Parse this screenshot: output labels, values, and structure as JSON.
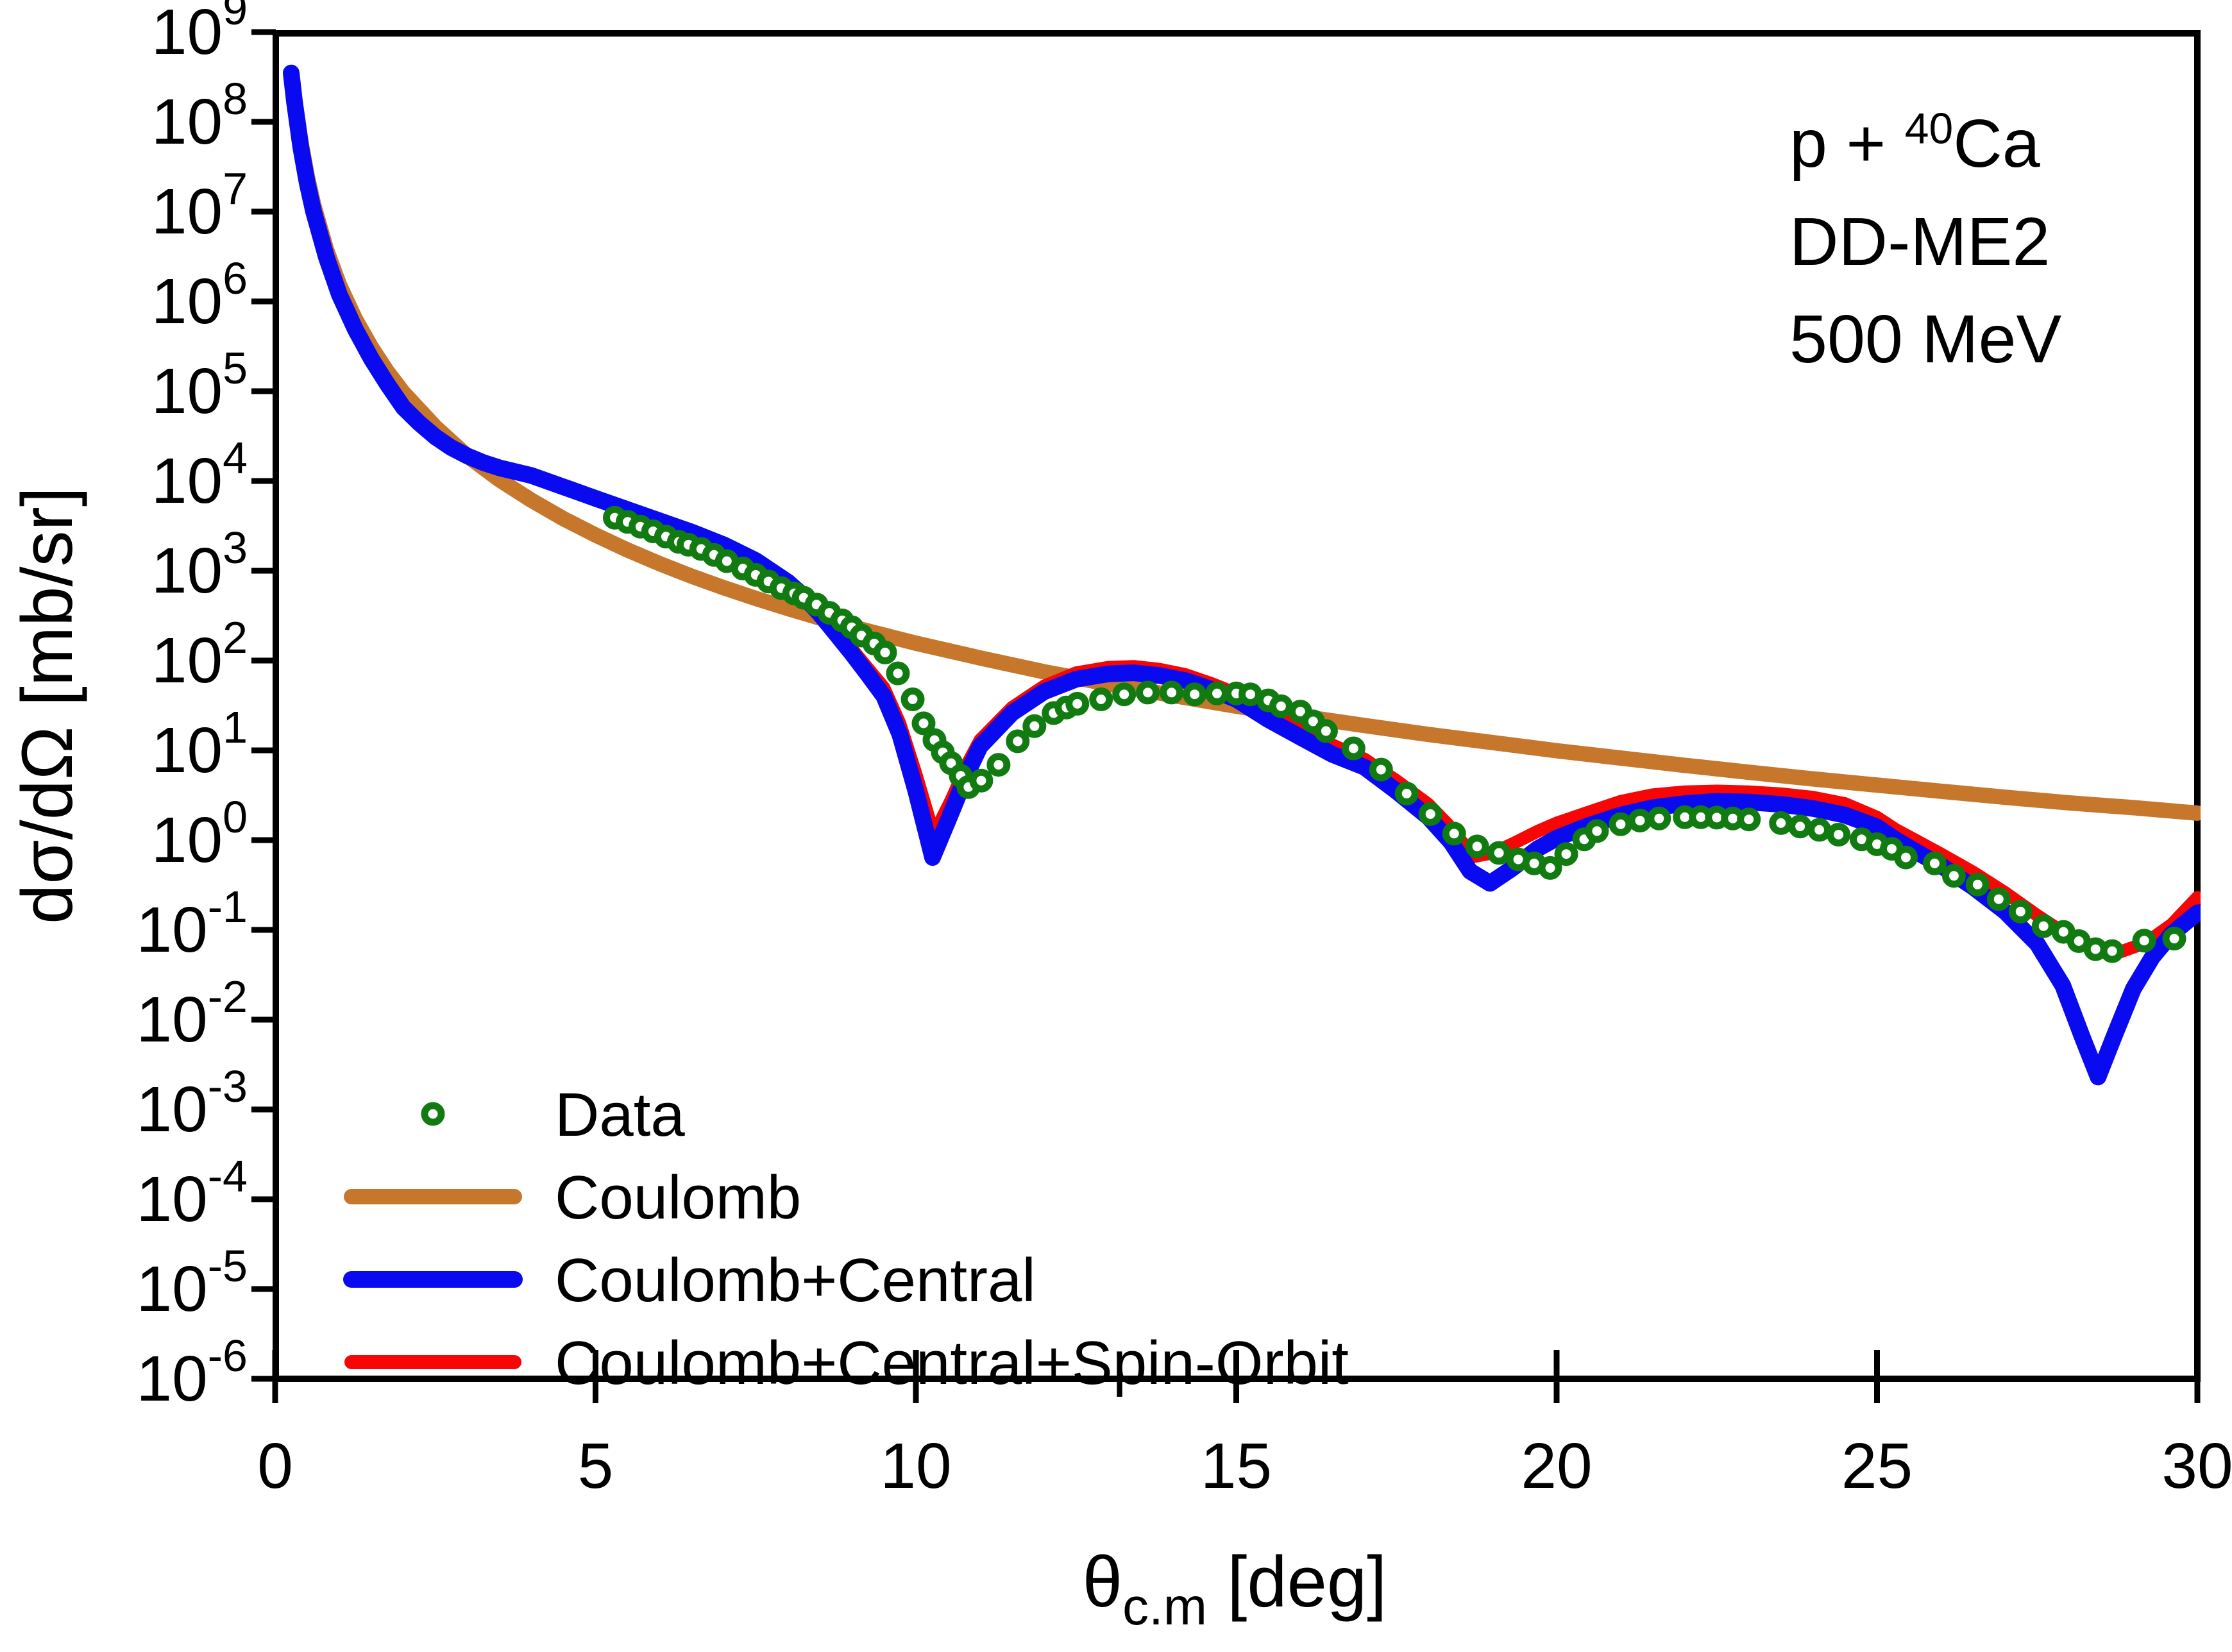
{
  "title": {
    "reaction_prefix": "p + ",
    "reaction_mass": "40",
    "reaction_element": "Ca",
    "model": "DD-ME2",
    "energy": "500 MeV"
  },
  "colors": {
    "data": "#117B11",
    "coulomb": "#C7772C",
    "central": "#0A0AF0",
    "spin_orbit": "#F80505",
    "axis": "#000000"
  },
  "legend": {
    "items": [
      {
        "label": "Data",
        "marker": "circle",
        "color_key": "data"
      },
      {
        "label": "Coulomb",
        "marker": "line",
        "color_key": "coulomb"
      },
      {
        "label": "Coulomb+Central",
        "marker": "line",
        "color_key": "central"
      },
      {
        "label": "Coulomb+Central+Spin-Orbit",
        "marker": "line",
        "color_key": "spin_orbit"
      }
    ]
  },
  "chart_data": {
    "type": "line",
    "title": "p + 40Ca  DD-ME2  500 MeV",
    "xlabel": "theta_c.m [deg]",
    "ylabel": "dsigma/dOmega [mb/sr]",
    "x_axis": {
      "label_symbol": "θ",
      "label_subscript": "c.m",
      "label_unit": " [deg]",
      "min": 0,
      "max": 30,
      "ticks": [
        0,
        5,
        10,
        15,
        20,
        25,
        30
      ]
    },
    "y_axis": {
      "label": "dσ/dΩ [mb/sr]",
      "scale": "log",
      "min_exponent": -6,
      "max_exponent": 9,
      "tick_exponents": [
        9,
        8,
        7,
        6,
        5,
        4,
        3,
        2,
        1,
        0,
        -1,
        -2,
        -3,
        -4,
        -5,
        -6
      ]
    },
    "grid": false,
    "legend_position": "lower-left",
    "series": [
      {
        "name": "Coulomb",
        "style": "line",
        "color_key": "coulomb",
        "stroke_width": 24,
        "points": [
          [
            0.25,
            340000000.0
          ],
          [
            0.3,
            190000000.0
          ],
          [
            0.4,
            61000000.0
          ],
          [
            0.5,
            25000000.0
          ],
          [
            0.6,
            12000000.0
          ],
          [
            0.8,
            3800000.0
          ],
          [
            1.0,
            1550000.0
          ],
          [
            1.25,
            640000.0
          ],
          [
            1.5,
            310000.0
          ],
          [
            1.75,
            166000.0
          ],
          [
            2.0,
            97000.0
          ],
          [
            2.5,
            40000.0
          ],
          [
            3.0,
            19000.0
          ],
          [
            3.5,
            10300.0
          ],
          [
            4.0,
            6100
          ],
          [
            4.5,
            3800
          ],
          [
            5.0,
            2500
          ],
          [
            5.5,
            1700
          ],
          [
            6.0,
            1200
          ],
          [
            6.5,
            870
          ],
          [
            7.0,
            648
          ],
          [
            7.5,
            492
          ],
          [
            8.0,
            380
          ],
          [
            8.5,
            298
          ],
          [
            9.0,
            237
          ],
          [
            9.5,
            192
          ],
          [
            10,
            156
          ],
          [
            11,
            107
          ],
          [
            12,
            75
          ],
          [
            13,
            55
          ],
          [
            14,
            41
          ],
          [
            15,
            31
          ],
          [
            16,
            24
          ],
          [
            17,
            18.9
          ],
          [
            18,
            15
          ],
          [
            19,
            12.2
          ],
          [
            20,
            9.9
          ],
          [
            21,
            8.2
          ],
          [
            22,
            6.8
          ],
          [
            23,
            5.7
          ],
          [
            24,
            4.8
          ],
          [
            25,
            4.1
          ],
          [
            26,
            3.5
          ],
          [
            27,
            3.0
          ],
          [
            28,
            2.6
          ],
          [
            29,
            2.3
          ],
          [
            30,
            2.0
          ]
        ]
      },
      {
        "name": "Coulomb+Central+Spin-Orbit",
        "style": "line",
        "color_key": "spin_orbit",
        "stroke_width": 20,
        "points": [
          [
            0.25,
            350000000.0
          ],
          [
            0.5,
            21000000.0
          ],
          [
            1.0,
            1200000.0
          ],
          [
            1.5,
            230000.0
          ],
          [
            2.0,
            66000.0
          ],
          [
            2.5,
            31000.0
          ],
          [
            3.0,
            19000.0
          ],
          [
            3.5,
            14000.0
          ],
          [
            4.0,
            11500.0
          ],
          [
            4.5,
            8600
          ],
          [
            5.0,
            6400
          ],
          [
            5.5,
            4800
          ],
          [
            6.0,
            3600
          ],
          [
            6.5,
            2700
          ],
          [
            7.0,
            1950
          ],
          [
            7.5,
            1310
          ],
          [
            8.0,
            770
          ],
          [
            8.25,
            545
          ],
          [
            8.5,
            350
          ],
          [
            8.75,
            215
          ],
          [
            9.0,
            135
          ],
          [
            9.25,
            82
          ],
          [
            9.5,
            50
          ],
          [
            9.75,
            20
          ],
          [
            10.0,
            5.5
          ],
          [
            10.28,
            1.15
          ],
          [
            10.55,
            2.8
          ],
          [
            10.8,
            7.0
          ],
          [
            11.0,
            13
          ],
          [
            11.5,
            30
          ],
          [
            12.0,
            52
          ],
          [
            12.5,
            73
          ],
          [
            13.0,
            84
          ],
          [
            13.4,
            86
          ],
          [
            13.8,
            80
          ],
          [
            14.2,
            70
          ],
          [
            14.6,
            56
          ],
          [
            15.0,
            43
          ],
          [
            15.5,
            27
          ],
          [
            16.0,
            17.5
          ],
          [
            16.5,
            11.5
          ],
          [
            17.0,
            8.0
          ],
          [
            17.5,
            4.6
          ],
          [
            18.0,
            2.5
          ],
          [
            18.3,
            1.5
          ],
          [
            18.55,
            0.9
          ],
          [
            18.73,
            0.66
          ],
          [
            19.0,
            0.72
          ],
          [
            19.3,
            0.9
          ],
          [
            19.7,
            1.25
          ],
          [
            20.0,
            1.55
          ],
          [
            20.5,
            2.05
          ],
          [
            21.0,
            2.7
          ],
          [
            21.5,
            3.2
          ],
          [
            22.0,
            3.45
          ],
          [
            22.5,
            3.52
          ],
          [
            23.0,
            3.45
          ],
          [
            23.5,
            3.28
          ],
          [
            24.0,
            3.0
          ],
          [
            24.5,
            2.55
          ],
          [
            25.0,
            1.8
          ],
          [
            25.3,
            1.3
          ],
          [
            25.6,
            1.0
          ],
          [
            26.0,
            0.7
          ],
          [
            26.5,
            0.44
          ],
          [
            27.0,
            0.26
          ],
          [
            27.5,
            0.145
          ],
          [
            28.0,
            0.085
          ],
          [
            28.4,
            0.062
          ],
          [
            28.8,
            0.057
          ],
          [
            29.2,
            0.072
          ],
          [
            29.6,
            0.115
          ],
          [
            30.0,
            0.23
          ]
        ]
      },
      {
        "name": "Coulomb+Central",
        "style": "line",
        "color_key": "central",
        "stroke_width": 26,
        "points": [
          [
            0.25,
            350000000.0
          ],
          [
            0.3,
            170000000.0
          ],
          [
            0.4,
            52000000.0
          ],
          [
            0.5,
            21000000.0
          ],
          [
            0.6,
            10000000.0
          ],
          [
            0.8,
            3100000.0
          ],
          [
            1.0,
            1200000.0
          ],
          [
            1.25,
            490000.0
          ],
          [
            1.5,
            230000.0
          ],
          [
            1.75,
            120000.0
          ],
          [
            2.0,
            66000.0
          ],
          [
            2.25,
            44000.0
          ],
          [
            2.5,
            31000.0
          ],
          [
            2.75,
            23500.0
          ],
          [
            3.0,
            19000.0
          ],
          [
            3.25,
            16000.0
          ],
          [
            3.5,
            14000.0
          ],
          [
            4.0,
            11500.0
          ],
          [
            4.5,
            8600
          ],
          [
            5.0,
            6400
          ],
          [
            5.5,
            4800
          ],
          [
            6.0,
            3600
          ],
          [
            6.5,
            2700
          ],
          [
            7.0,
            1950
          ],
          [
            7.5,
            1300
          ],
          [
            8.0,
            750
          ],
          [
            8.25,
            520
          ],
          [
            8.5,
            330
          ],
          [
            8.75,
            200
          ],
          [
            9.0,
            120
          ],
          [
            9.25,
            70
          ],
          [
            9.5,
            40
          ],
          [
            9.75,
            15
          ],
          [
            10.0,
            3.5
          ],
          [
            10.26,
            0.64
          ],
          [
            10.55,
            2.0
          ],
          [
            10.8,
            5.5
          ],
          [
            11.0,
            11
          ],
          [
            11.5,
            26
          ],
          [
            12.0,
            45
          ],
          [
            12.5,
            62
          ],
          [
            13.0,
            71
          ],
          [
            13.4,
            73
          ],
          [
            13.8,
            68
          ],
          [
            14.2,
            60
          ],
          [
            14.6,
            48
          ],
          [
            15.0,
            37
          ],
          [
            15.5,
            22
          ],
          [
            16.0,
            14
          ],
          [
            16.5,
            9.0
          ],
          [
            17.0,
            6.5
          ],
          [
            17.5,
            3.5
          ],
          [
            18.0,
            1.8
          ],
          [
            18.35,
            0.95
          ],
          [
            18.65,
            0.45
          ],
          [
            18.96,
            0.33
          ],
          [
            19.3,
            0.48
          ],
          [
            19.7,
            0.8
          ],
          [
            20.0,
            1.05
          ],
          [
            20.5,
            1.45
          ],
          [
            21.0,
            1.9
          ],
          [
            21.5,
            2.3
          ],
          [
            22.0,
            2.55
          ],
          [
            22.5,
            2.7
          ],
          [
            23.0,
            2.65
          ],
          [
            23.5,
            2.5
          ],
          [
            24.0,
            2.25
          ],
          [
            24.5,
            1.9
          ],
          [
            25.0,
            1.4
          ],
          [
            25.3,
            1.0
          ],
          [
            25.6,
            0.75
          ],
          [
            26.0,
            0.52
          ],
          [
            26.5,
            0.3
          ],
          [
            27.0,
            0.16
          ],
          [
            27.5,
            0.07
          ],
          [
            27.9,
            0.024
          ],
          [
            28.2,
            0.0065
          ],
          [
            28.45,
            0.0023
          ],
          [
            28.7,
            0.0065
          ],
          [
            29.0,
            0.022
          ],
          [
            29.3,
            0.05
          ],
          [
            29.6,
            0.09
          ],
          [
            30.0,
            0.155
          ]
        ]
      },
      {
        "name": "Data",
        "style": "scatter",
        "color_key": "data",
        "marker_radius": 13,
        "marker_stroke": 11,
        "points": [
          [
            5.3,
            3900
          ],
          [
            5.5,
            3500
          ],
          [
            5.7,
            3100
          ],
          [
            5.9,
            2750
          ],
          [
            6.1,
            2400
          ],
          [
            6.3,
            2100
          ],
          [
            6.45,
            1950
          ],
          [
            6.65,
            1750
          ],
          [
            6.85,
            1500
          ],
          [
            7.05,
            1280
          ],
          [
            7.3,
            1060
          ],
          [
            7.5,
            900
          ],
          [
            7.7,
            760
          ],
          [
            7.9,
            640
          ],
          [
            8.1,
            560
          ],
          [
            8.25,
            500
          ],
          [
            8.45,
            420
          ],
          [
            8.65,
            340
          ],
          [
            8.85,
            280
          ],
          [
            9.0,
            235
          ],
          [
            9.15,
            190
          ],
          [
            9.35,
            155
          ],
          [
            9.52,
            123
          ],
          [
            9.72,
            72
          ],
          [
            9.95,
            37
          ],
          [
            10.12,
            20
          ],
          [
            10.29,
            13
          ],
          [
            10.42,
            9.5
          ],
          [
            10.55,
            7.2
          ],
          [
            10.7,
            5.2
          ],
          [
            10.82,
            3.9
          ],
          [
            11.02,
            4.6
          ],
          [
            11.29,
            6.9
          ],
          [
            11.59,
            12.6
          ],
          [
            11.85,
            18.6
          ],
          [
            12.15,
            26
          ],
          [
            12.35,
            30
          ],
          [
            12.52,
            33
          ],
          [
            12.89,
            37
          ],
          [
            13.25,
            42
          ],
          [
            13.62,
            44
          ],
          [
            13.99,
            44
          ],
          [
            14.35,
            42
          ],
          [
            14.7,
            43
          ],
          [
            15.0,
            43
          ],
          [
            15.22,
            42
          ],
          [
            15.5,
            36
          ],
          [
            15.7,
            31
          ],
          [
            16.0,
            27
          ],
          [
            16.2,
            21
          ],
          [
            16.4,
            16.4
          ],
          [
            16.83,
            10.5
          ],
          [
            17.26,
            6.1
          ],
          [
            17.66,
            3.3
          ],
          [
            18.03,
            1.95
          ],
          [
            18.4,
            1.18
          ],
          [
            18.76,
            0.85
          ],
          [
            19.1,
            0.72
          ],
          [
            19.4,
            0.61
          ],
          [
            19.65,
            0.55
          ],
          [
            19.9,
            0.49
          ],
          [
            20.15,
            0.7
          ],
          [
            20.43,
            1.02
          ],
          [
            20.63,
            1.26
          ],
          [
            21.0,
            1.5
          ],
          [
            21.3,
            1.65
          ],
          [
            21.6,
            1.74
          ],
          [
            22.0,
            1.8
          ],
          [
            22.25,
            1.8
          ],
          [
            22.5,
            1.78
          ],
          [
            22.75,
            1.74
          ],
          [
            23.0,
            1.7
          ],
          [
            23.5,
            1.55
          ],
          [
            23.8,
            1.42
          ],
          [
            24.1,
            1.3
          ],
          [
            24.4,
            1.15
          ],
          [
            24.76,
            1.02
          ],
          [
            25.0,
            0.9
          ],
          [
            25.23,
            0.8
          ],
          [
            25.45,
            0.64
          ],
          [
            25.9,
            0.55
          ],
          [
            26.2,
            0.4
          ],
          [
            26.57,
            0.32
          ],
          [
            26.9,
            0.22
          ],
          [
            27.24,
            0.16
          ],
          [
            27.6,
            0.11
          ],
          [
            27.91,
            0.095
          ],
          [
            28.15,
            0.075
          ],
          [
            28.41,
            0.061
          ],
          [
            28.67,
            0.058
          ],
          [
            29.17,
            0.076
          ],
          [
            29.64,
            0.08
          ]
        ]
      }
    ]
  }
}
